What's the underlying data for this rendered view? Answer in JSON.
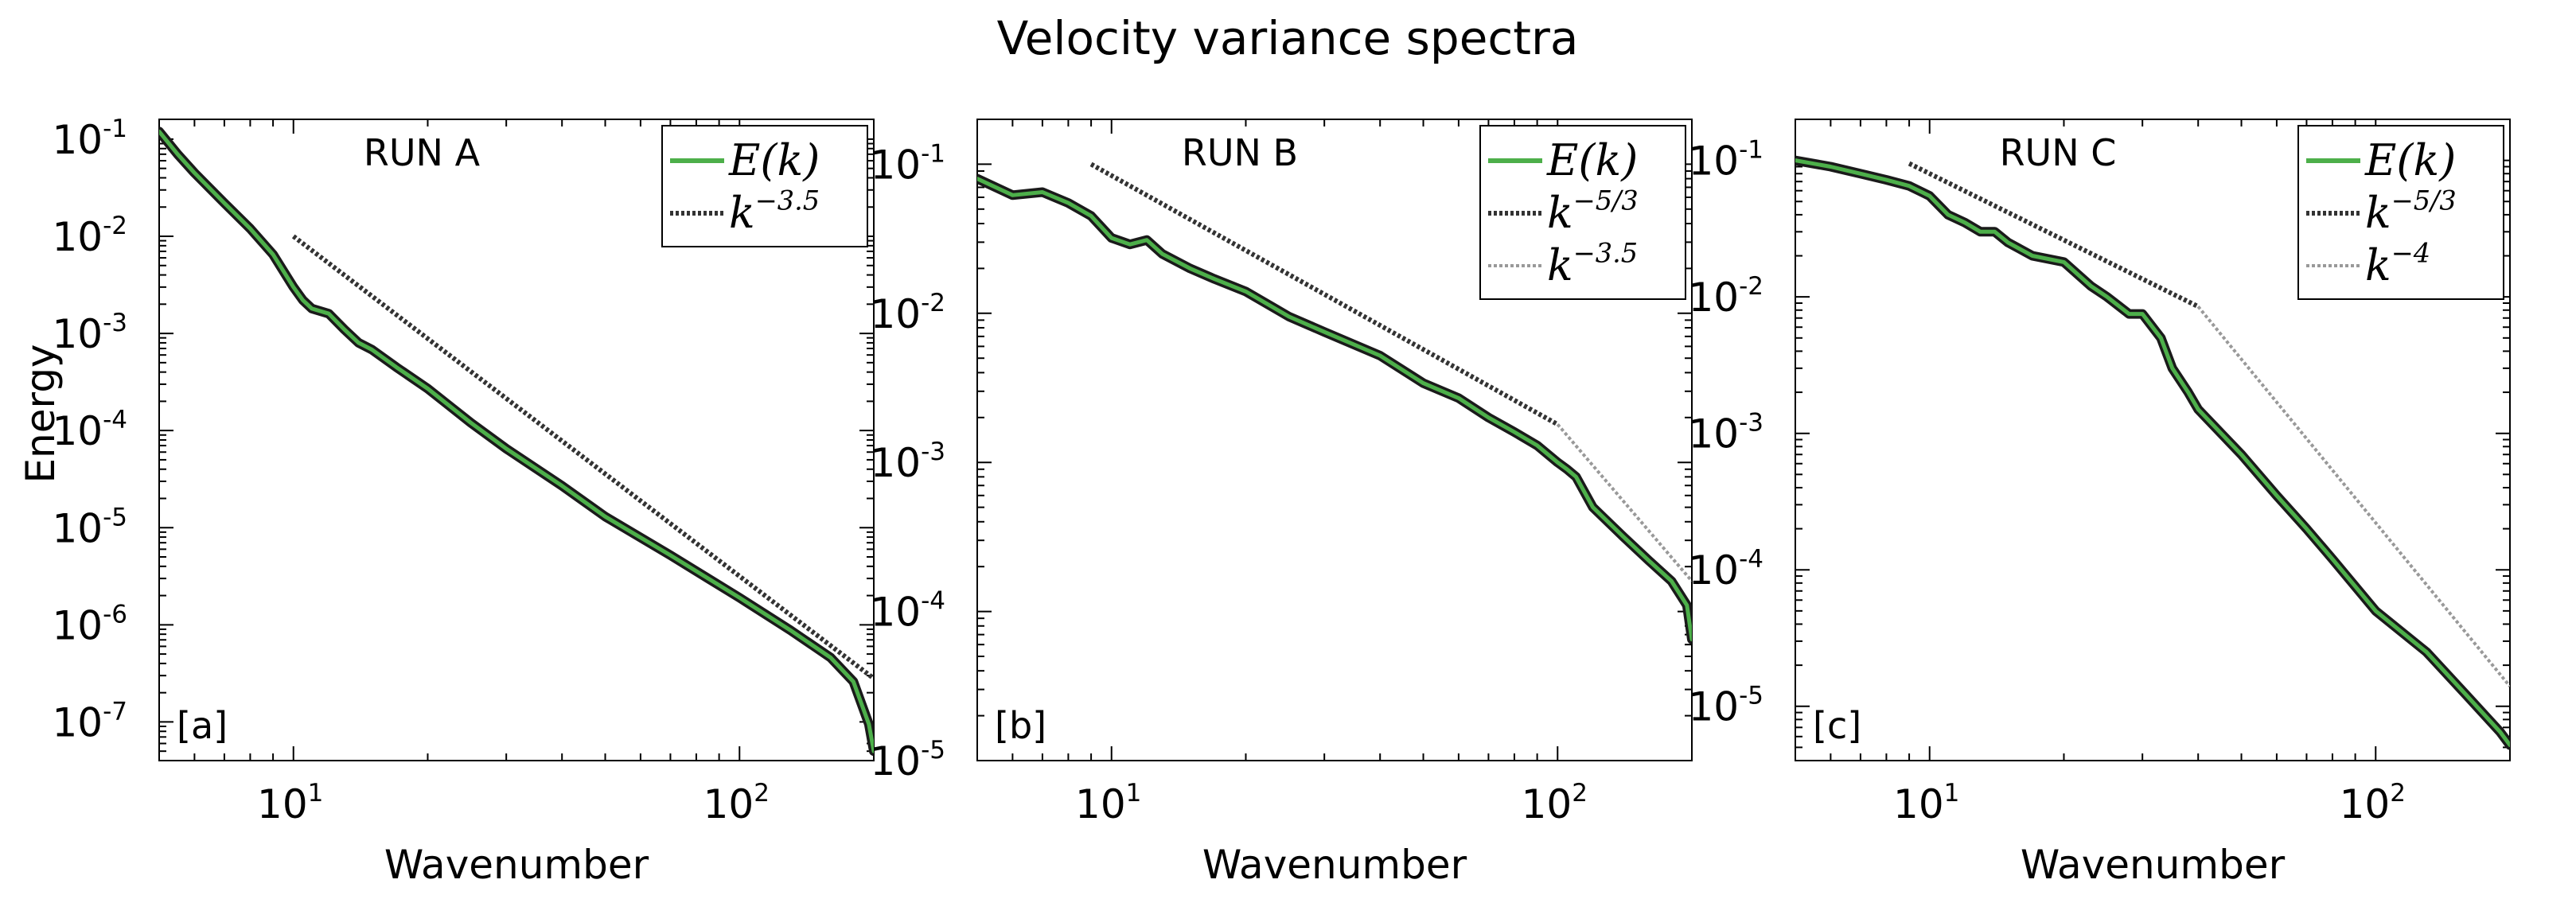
{
  "figure": {
    "title": "Velocity variance spectra",
    "ylabel": "Energy"
  },
  "colors": {
    "spectrum_core": "#4daf4a",
    "spectrum_edge": "#1a1a1a",
    "fit_dark": "#333333",
    "fit_light": "#999999",
    "axes": "#000000"
  },
  "chart_data": [
    {
      "type": "line",
      "panel_label": "[a]",
      "run_label": "RUN A",
      "xlabel": "Wavenumber",
      "ylabel": "Energy",
      "xscale": "log",
      "yscale": "log",
      "xlim": [
        5,
        200
      ],
      "ylim": [
        4e-08,
        0.16
      ],
      "xticks": [
        10,
        100
      ],
      "xtick_labels": [
        {
          "base": "10",
          "exp": "1"
        },
        {
          "base": "10",
          "exp": "2"
        }
      ],
      "yticks": [
        1e-07,
        1e-06,
        1e-05,
        0.0001,
        0.001,
        0.01,
        0.1
      ],
      "ytick_labels": [
        {
          "base": "10",
          "exp": "-7"
        },
        {
          "base": "10",
          "exp": "-6"
        },
        {
          "base": "10",
          "exp": "-5"
        },
        {
          "base": "10",
          "exp": "-4"
        },
        {
          "base": "10",
          "exp": "-3"
        },
        {
          "base": "10",
          "exp": "-2"
        },
        {
          "base": "10",
          "exp": "-1"
        }
      ],
      "grid": false,
      "legend_position": "top-right",
      "series": [
        {
          "name": "E(k)",
          "legend": {
            "base": "E(k)",
            "exp": ""
          },
          "style": "spectrum",
          "x": [
            5,
            5.5,
            6,
            7,
            8,
            9,
            10,
            10.5,
            11,
            12,
            13,
            14,
            15,
            17,
            20,
            25,
            30,
            40,
            50,
            70,
            100,
            130,
            160,
            180,
            195,
            200
          ],
          "y": [
            0.12,
            0.07,
            0.045,
            0.022,
            0.012,
            0.0065,
            0.003,
            0.0022,
            0.0018,
            0.0016,
            0.0011,
            0.0008,
            0.00068,
            0.00045,
            0.00027,
            0.00012,
            6.5e-05,
            2.7e-05,
            1.3e-05,
            5.2e-06,
            1.9e-06,
            8.8e-07,
            4.6e-07,
            2.6e-07,
            9.5e-08,
            5e-08
          ]
        },
        {
          "name": "k^-3.5",
          "legend": {
            "base": "k",
            "exp": "−3.5"
          },
          "style": "fit_dark",
          "x": [
            10,
            200
          ],
          "y": [
            0.01,
            2.8e-07
          ]
        }
      ]
    },
    {
      "type": "line",
      "panel_label": "[b]",
      "run_label": "RUN B",
      "xlabel": "Wavenumber",
      "ylabel": "",
      "xscale": "log",
      "yscale": "log",
      "xlim": [
        5,
        200
      ],
      "ylim": [
        1e-05,
        0.2
      ],
      "xticks": [
        10,
        100
      ],
      "xtick_labels": [
        {
          "base": "10",
          "exp": "1"
        },
        {
          "base": "10",
          "exp": "2"
        }
      ],
      "yticks": [
        1e-05,
        0.0001,
        0.001,
        0.01,
        0.1
      ],
      "ytick_labels": [
        {
          "base": "10",
          "exp": "-5"
        },
        {
          "base": "10",
          "exp": "-4"
        },
        {
          "base": "10",
          "exp": "-3"
        },
        {
          "base": "10",
          "exp": "-2"
        },
        {
          "base": "10",
          "exp": "-1"
        }
      ],
      "grid": false,
      "legend_position": "top-right",
      "series": [
        {
          "name": "E(k)",
          "legend": {
            "base": "E(k)",
            "exp": ""
          },
          "style": "spectrum",
          "x": [
            5,
            6,
            7,
            8,
            9,
            10,
            11,
            12,
            13,
            15,
            17,
            20,
            25,
            30,
            40,
            50,
            60,
            70,
            80,
            90,
            100,
            105,
            110,
            120,
            140,
            160,
            180,
            195,
            200
          ],
          "y": [
            0.08,
            0.062,
            0.065,
            0.055,
            0.045,
            0.032,
            0.029,
            0.031,
            0.025,
            0.02,
            0.017,
            0.014,
            0.0095,
            0.0075,
            0.0052,
            0.0034,
            0.0027,
            0.002,
            0.0016,
            0.0013,
            0.001,
            0.0009,
            0.0008,
            0.0005,
            0.00032,
            0.00022,
            0.00016,
            0.00011,
            6.5e-05
          ]
        },
        {
          "name": "k^-5/3",
          "legend": {
            "base": "k",
            "exp": "−5/3"
          },
          "style": "fit_dark",
          "x": [
            9,
            100
          ],
          "y": [
            0.1,
            0.0018
          ]
        },
        {
          "name": "k^-3.5",
          "legend": {
            "base": "k",
            "exp": "−3.5"
          },
          "style": "fit_light",
          "x": [
            100,
            200
          ],
          "y": [
            0.0018,
            0.00016
          ]
        }
      ]
    },
    {
      "type": "line",
      "panel_label": "[c]",
      "run_label": "RUN C",
      "xlabel": "Wavenumber",
      "ylabel": "",
      "xscale": "log",
      "yscale": "log",
      "xlim": [
        5,
        200
      ],
      "ylim": [
        4e-06,
        0.2
      ],
      "xticks": [
        10,
        100
      ],
      "xtick_labels": [
        {
          "base": "10",
          "exp": "1"
        },
        {
          "base": "10",
          "exp": "2"
        }
      ],
      "yticks": [
        1e-05,
        0.0001,
        0.001,
        0.01,
        0.1
      ],
      "ytick_labels": [
        {
          "base": "10",
          "exp": "-5"
        },
        {
          "base": "10",
          "exp": "-4"
        },
        {
          "base": "10",
          "exp": "-3"
        },
        {
          "base": "10",
          "exp": "-2"
        },
        {
          "base": "10",
          "exp": "-1"
        }
      ],
      "grid": false,
      "legend_position": "top-right",
      "series": [
        {
          "name": "E(k)",
          "legend": {
            "base": "E(k)",
            "exp": ""
          },
          "style": "spectrum",
          "x": [
            5,
            6,
            7,
            8,
            9,
            10,
            11,
            12,
            13,
            14,
            15,
            17,
            20,
            23,
            25,
            28,
            30,
            33,
            35,
            38,
            40,
            50,
            60,
            70,
            80,
            100,
            130,
            160,
            190,
            200
          ],
          "y": [
            0.1,
            0.09,
            0.08,
            0.072,
            0.065,
            0.055,
            0.04,
            0.035,
            0.03,
            0.03,
            0.025,
            0.02,
            0.018,
            0.012,
            0.01,
            0.0075,
            0.0075,
            0.005,
            0.003,
            0.002,
            0.0015,
            0.0007,
            0.00035,
            0.0002,
            0.00012,
            5e-05,
            2.5e-05,
            1.2e-05,
            6.5e-06,
            5.2e-06
          ]
        },
        {
          "name": "k^-5/3",
          "legend": {
            "base": "k",
            "exp": "−5/3"
          },
          "style": "fit_dark",
          "x": [
            9,
            40
          ],
          "y": [
            0.095,
            0.0085
          ]
        },
        {
          "name": "k^-4",
          "legend": {
            "base": "k",
            "exp": "−4"
          },
          "style": "fit_light",
          "x": [
            40,
            200
          ],
          "y": [
            0.0085,
            1.4e-05
          ]
        }
      ]
    }
  ]
}
